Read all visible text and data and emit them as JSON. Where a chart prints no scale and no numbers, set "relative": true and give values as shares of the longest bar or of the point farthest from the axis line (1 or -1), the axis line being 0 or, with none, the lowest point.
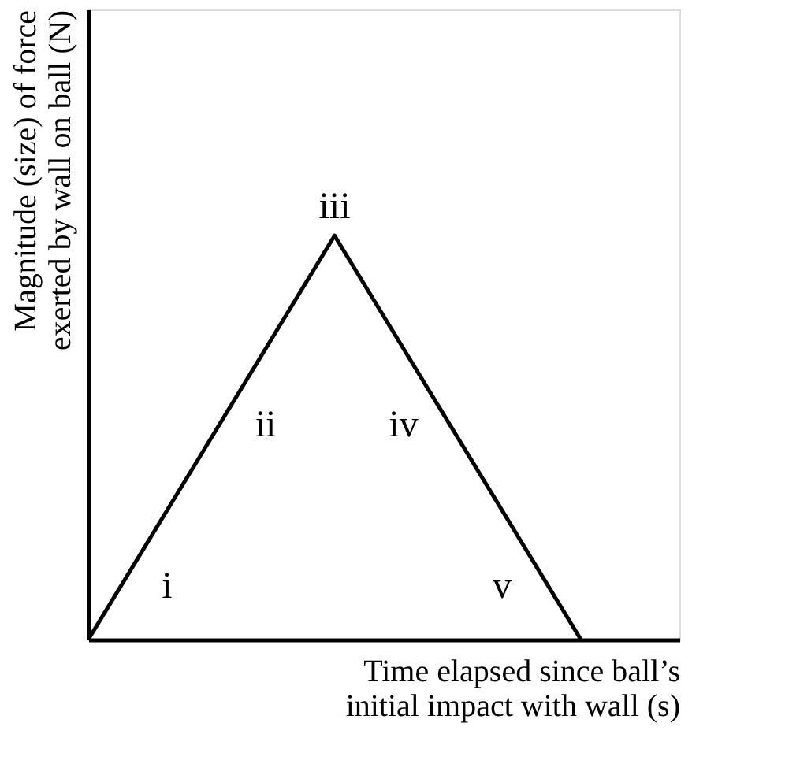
{
  "chart_data": {
    "type": "line",
    "relative": true,
    "categories": [
      null,
      null,
      null
    ],
    "series": [
      {
        "color": "#000000",
        "values": [
          0,
          1,
          0
        ]
      }
    ],
    "xlabel": "Time elapsed since ball’s\ninitial impact with wall (s)",
    "ylabel": "Magnitude (size) of force\nexerted by wall on ball (N)",
    "tick_labels": false,
    "grid": false,
    "marker": "none",
    "line_style": "solid",
    "annotations": [
      "i",
      "ii",
      "iii",
      "iv",
      "v"
    ]
  }
}
